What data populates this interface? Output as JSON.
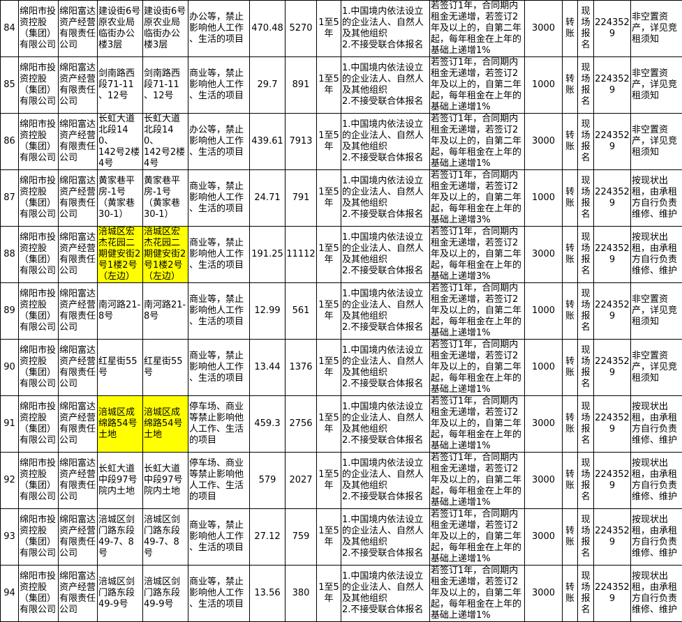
{
  "colors": {
    "highlight": "#ffff00",
    "border": "#000000"
  },
  "rows": [
    {
      "no": "84",
      "owner": "绵阳市投\n资控股\n（集团）\n有限公司",
      "company": "绵阳富达\n资产经营\n有限责任\n公司",
      "location": "建设街6号\n原农业局\n临街办公\n楼3层",
      "address": "建设街6号\n原农业局\n临街办公\n楼3层",
      "use": "办公等，禁止\n影响他人工作\n、生活的项目",
      "area": "470.48",
      "rent": "5270",
      "term": "1至5\n年",
      "requirements": "1.中国境内依法设立\n的企业法人、自然人\n及其他组织\n2.不接受联合体报名",
      "terms": "若签订1年，合同期内\n租金无递增，若签订2\n年及以上的，自第二年\n起，每年租金在上年的\n基础上递增1%",
      "deposit": "3000",
      "payment": "转\n账",
      "signup": "现\n场\n报\n名",
      "phone": "2243529",
      "note": "非空置资\n产，详见竞\n租须知",
      "highlight": false
    },
    {
      "no": "85",
      "owner": "绵阳市投\n资控股\n（集团）\n有限公司",
      "company": "绵阳富达\n资产经营\n有限责任\n公司",
      "location": "剑南路西\n段71-11\n、12号",
      "address": "剑南路西\n段71-11\n、12号",
      "use": "商业等，禁止\n影响他人工作\n、生活的项目",
      "area": "29.7",
      "rent": "891",
      "term": "1至5\n年",
      "requirements": "1.中国境内依法设立\n的企业法人、自然人\n及其他组织\n2.不接受联合体报名",
      "terms": "若签订1年，合同期内\n租金无递增，若签订2\n年及以上的，自第二年\n起，每年租金在上年的\n基础上递增1%",
      "deposit": "1000",
      "payment": "转\n账",
      "signup": "现\n场\n报\n名",
      "phone": "2243529",
      "note": "非空置资\n产，详见竞\n租须知",
      "highlight": false
    },
    {
      "no": "86",
      "owner": "绵阳市投\n资控股\n（集团）\n有限公司",
      "company": "绵阳富达\n资产经营\n有限责任\n公司",
      "location": "长虹大道\n北段140、\n142号2楼\n4号",
      "address": "长虹大道\n北段140、\n142号2楼\n4号",
      "use": "办公等，禁止\n影响他人工作\n、生活的项目",
      "area": "439.61",
      "rent": "7913",
      "term": "1至5\n年",
      "requirements": "1.中国境内依法设立\n的企业法人、自然人\n及其他组织\n2.不接受联合体报名",
      "terms": "若签订1年，合同期内\n租金无递增，若签订2\n年及以上的，自第二年\n起，每年租金在上年的\n基础上递增1%",
      "deposit": "3000",
      "payment": "转\n账",
      "signup": "现\n场\n报\n名",
      "phone": "2243529",
      "note": "非空置资\n产，详见竞\n租须知",
      "highlight": false
    },
    {
      "no": "87",
      "owner": "绵阳市投\n资控股\n（集团）\n有限公司",
      "company": "绵阳富达\n资产经营\n有限责任\n公司",
      "location": "黄家巷平\n房-1号\n（黄家巷\n30-1）",
      "address": "黄家巷平\n房-1号\n（黄家巷\n30-1）",
      "use": "商业等，禁止\n影响他人工作\n、生活的项目",
      "area": "24.71",
      "rent": "791",
      "term": "1至5\n年",
      "requirements": "1.中国境内依法设立\n的企业法人、自然人\n及其他组织\n2.不接受联合体报名",
      "terms": "若签订1年，合同期内\n租金无递增，若签订2\n年及以上的，自第二年\n起，每年租金在上年的\n基础上递增3%",
      "deposit": "1000",
      "payment": "转\n账",
      "signup": "现\n场\n报\n名",
      "phone": "2243529",
      "note": "按现状出\n租，由承租\n方自行负责\n维修、维护",
      "highlight": false
    },
    {
      "no": "88",
      "owner": "绵阳市投\n资控股\n（集团）\n有限公司",
      "company": "绵阳富达\n资产经营\n有限责任\n公司",
      "location": " 涪城区宏\n杰花园二\n期健安街2\n号1楼2号\n（左边）",
      "address": " 涪城区宏\n杰花园二\n期健安街2\n号1楼2号\n（左边）",
      "use": "商业等，禁止\n影响他人工作\n、生活的项目",
      "area": "191.25",
      "rent": "11112",
      "term": "1至5\n年",
      "requirements": "1.中国境内依法设立\n的企业法人、自然人\n及其他组织\n2.不接受联合体报名",
      "terms": "若签订1年，合同期内\n租金无递增，若签订2\n年及以上的，自第二年\n起，每年租金在上年的\n基础上递增3%",
      "deposit": "3000",
      "payment": "转\n账",
      "signup": "现\n场\n报\n名",
      "phone": "2243529",
      "note": "按现状出\n租，由承租\n方自行负责\n维修、维护",
      "highlight": true
    },
    {
      "no": "89",
      "owner": "绵阳市投\n资控股\n（集团）\n有限公司",
      "company": "绵阳富达\n资产经营\n有限责任\n公司",
      "location": "南河路21-\n8号",
      "address": "南河路21-\n8号",
      "use": "商业等，禁止\n影响他人工作\n、生活的项目",
      "area": "12.99",
      "rent": "561",
      "term": "1至5\n年",
      "requirements": "1.中国境内依法设立\n的企业法人、自然人\n及其他组织\n2.不接受联合体报名",
      "terms": "若签订1年，合同期内\n租金无递增，若签订2\n年及以上的，自第二年\n起，每年租金在上年的\n基础上递增1%",
      "deposit": "1000",
      "payment": "转\n账",
      "signup": "现\n场\n报\n名",
      "phone": "2243529",
      "note": "非空置资\n产，详见竞\n租须知",
      "highlight": false
    },
    {
      "no": "90",
      "owner": "绵阳市投\n资控股\n（集团）\n有限公司",
      "company": "绵阳富达\n资产经营\n有限责任\n公司",
      "location": "红星街55\n号",
      "address": "红星街55\n号",
      "use": "商业等，禁止\n影响他人工作\n、生活的项目",
      "area": "13.44",
      "rent": "1376",
      "term": "1至5\n年",
      "requirements": "1.中国境内依法设立\n的企业法人、自然人\n及其他组织\n2.不接受联合体报名",
      "terms": "若签订1年，合同期内\n租金无递增，若签订2\n年及以上的，自第二年\n起，每年租金在上年的\n基础上递增1%",
      "deposit": "1000",
      "payment": "转\n账",
      "signup": "现\n场\n报\n名",
      "phone": "2243529",
      "note": "非空置资\n产，详见竞\n租须知",
      "highlight": false
    },
    {
      "no": "91",
      "owner": "绵阳市投\n资控股\n（集团）\n有限公司",
      "company": "绵阳富达\n资产经营\n有限责任\n公司",
      "location": "涪城区成\n绵路54号\n土地",
      "address": "涪城区成\n绵路54号\n土地",
      "use": "停车场、商业\n等禁止影响他\n人工作、生活\n的项目",
      "area": "459.3",
      "rent": "2756",
      "term": "1至5\n年",
      "requirements": "1.中国境内依法设立\n的企业法人、自然人\n及其他组织\n2.不接受联合体报名",
      "terms": "若签订1年，合同期内\n租金无递增，若签订2\n年及以上的，自第二年\n起，每年租金在上年的\n基础上递增1%",
      "deposit": "3000",
      "payment": "转\n账",
      "signup": "现\n场\n报\n名",
      "phone": "2243529",
      "note": "按现状出\n租，由承租\n方自行负责\n维修、维护",
      "highlight": true
    },
    {
      "no": "92",
      "owner": "绵阳市投\n资控股\n（集团）\n有限公司",
      "company": "绵阳富达\n资产经营\n有限责任\n公司",
      "location": "长虹大道\n中段97号\n院内土地",
      "address": "长虹大道\n中段97号\n院内土地",
      "use": "停车场、商业\n等禁止影响他\n人工作、生活\n的项目",
      "area": "579",
      "rent": "2027",
      "term": "1至5\n年",
      "requirements": "1.中国境内依法设立\n的企业法人、自然人\n及其他组织\n2.不接受联合体报名",
      "terms": "若签订1年，合同期内\n租金无递增，若签订2\n年及以上的，自第二年\n起，每年租金在上年的\n基础上递增1%",
      "deposit": "3000",
      "payment": "转\n账",
      "signup": "现\n场\n报\n名",
      "phone": "2243529",
      "note": "按现状出\n租，由承租\n方自行负责\n维修、维护",
      "highlight": false
    },
    {
      "no": "93",
      "owner": "绵阳市投\n资控股\n（集团）\n有限公司",
      "company": "绵阳富达\n资产经营\n有限责任\n公司",
      "location": "涪城区剑\n门路东段\n49-7、8\n号",
      "address": "涪城区剑\n门路东段\n49-7、8\n号",
      "use": "商业等，禁止\n影响他人工作\n、生活的项目",
      "area": "27.12",
      "rent": "759",
      "term": "1至5\n年",
      "requirements": "1.中国境内依法设立\n的企业法人、自然人\n及其他组织\n2.不接受联合体报名",
      "terms": "若签订1年，合同期内\n租金无递增，若签订2\n年及以上的，自第二年\n起，每年租金在上年的\n基础上递增1%",
      "deposit": "3000",
      "payment": "转\n账",
      "signup": "现\n场\n报\n名",
      "phone": "2243529",
      "note": "按现状出\n租，由承租\n方自行负责\n维修、维护",
      "highlight": false
    },
    {
      "no": "94",
      "owner": "绵阳市投\n资控股\n（集团）\n有限公司",
      "company": "绵阳富达\n资产经营\n有限责任\n公司",
      "location": "涪城区剑\n门路东段\n49-9号",
      "address": "涪城区剑\n门路东段\n49-9号",
      "use": "商业等，禁止\n影响他人工作\n、生活的项目",
      "area": "13.56",
      "rent": "380",
      "term": "1至5\n年",
      "requirements": "1.中国境内依法设立\n的企业法人、自然人\n及其他组织\n2.不接受联合体报名",
      "terms": "若签订1年，合同期内\n租金无递增，若签订2\n年及以上的，自第二年\n起，每年租金在上年的\n基础上递增1%",
      "deposit": "3000",
      "payment": "转\n账",
      "signup": "现\n场\n报\n名",
      "phone": "2243529",
      "note": "按现状出\n租，由承租\n方自行负责\n维修、维护",
      "highlight": false
    }
  ]
}
